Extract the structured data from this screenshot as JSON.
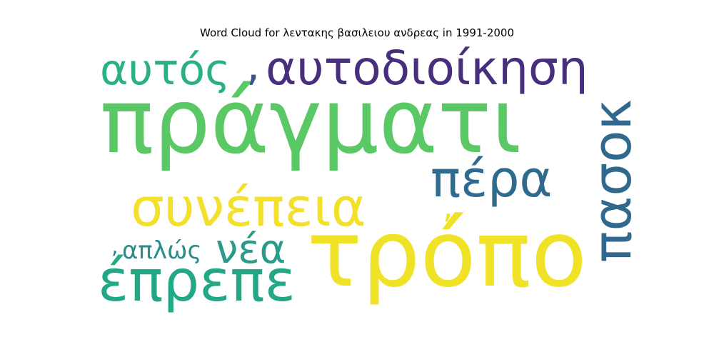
{
  "chart_data": {
    "type": "word_cloud",
    "title": "Word Cloud for λεντακης βασιλειου ανδρεας in 1991-2000",
    "words": [
      {
        "text": "πράγματι",
        "weight": 1.0,
        "color": "#5ac864"
      },
      {
        "text": "τρόπο",
        "weight": 0.82,
        "color": "#f0e226"
      },
      {
        "text": "πασοκ",
        "weight": 0.55,
        "color": "#31688e"
      },
      {
        "text": "συνέπεια",
        "weight": 0.52,
        "color": "#f2e02b"
      },
      {
        "text": "έπρεπε",
        "weight": 0.5,
        "color": "#22a884"
      },
      {
        "text": "αυτοδιοίκηση",
        "weight": 0.44,
        "color": "#472f7d"
      },
      {
        "text": "πέρα",
        "weight": 0.44,
        "color": "#2f6b8e"
      },
      {
        "text": "αυτός",
        "weight": 0.4,
        "color": "#2bb07f"
      },
      {
        "text": "νέα",
        "weight": 0.38,
        "color": "#2a9a8a"
      },
      {
        "text": "απλώς",
        "weight": 0.24,
        "color": "#2a8d8c"
      },
      {
        "text": ",",
        "weight": 0.4,
        "color": "#3b528b"
      },
      {
        "text": ",",
        "weight": 0.3,
        "color": "#ece51b"
      },
      {
        "text": ",",
        "weight": 0.2,
        "color": "#27808e"
      }
    ]
  }
}
